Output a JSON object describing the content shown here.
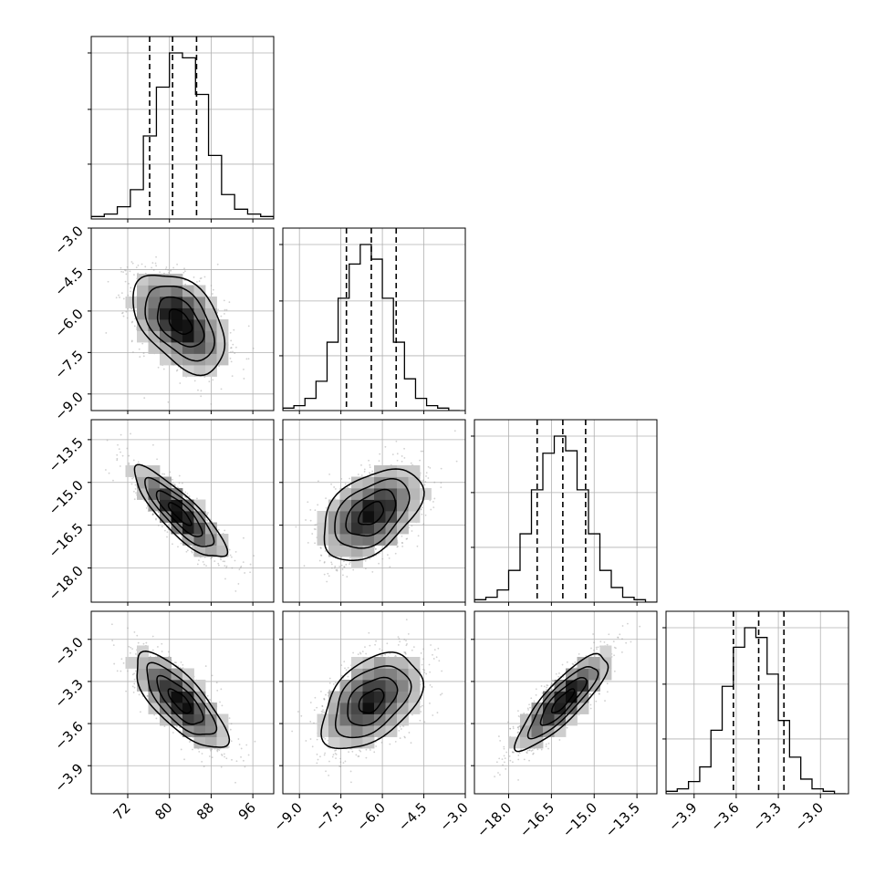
{
  "chart_data": {
    "type": "corner",
    "parameters": [
      {
        "range": [
          65,
          100
        ],
        "quantiles": [
          76.2,
          80.6,
          85.2
        ],
        "ticks": [
          {
            "v": 72,
            "label": "72"
          },
          {
            "v": 80,
            "label": "80"
          },
          {
            "v": 88,
            "label": "88"
          },
          {
            "v": 96,
            "label": "96"
          }
        ]
      },
      {
        "range": [
          -9.6,
          -3.0
        ],
        "quantiles": [
          -7.3,
          -6.4,
          -5.5
        ],
        "ticks": [
          {
            "v": -9.0,
            "label": "−9.0"
          },
          {
            "v": -7.5,
            "label": "−7.5"
          },
          {
            "v": -6.0,
            "label": "−6.0"
          },
          {
            "v": -4.5,
            "label": "−4.5"
          },
          {
            "v": -3.0,
            "label": "−3.0"
          }
        ]
      },
      {
        "range": [
          -19.2,
          -12.8
        ],
        "quantiles": [
          -17.0,
          -16.1,
          -15.3
        ],
        "ticks": [
          {
            "v": -18.0,
            "label": "−18.0"
          },
          {
            "v": -16.5,
            "label": "−16.5"
          },
          {
            "v": -15.0,
            "label": "−15.0"
          },
          {
            "v": -13.5,
            "label": "−13.5"
          }
        ]
      },
      {
        "range": [
          -4.1,
          -2.8
        ],
        "quantiles": [
          -3.62,
          -3.44,
          -3.26
        ],
        "ticks": [
          {
            "v": -3.9,
            "label": "−3.9"
          },
          {
            "v": -3.6,
            "label": "−3.6"
          },
          {
            "v": -3.3,
            "label": "−3.3"
          },
          {
            "v": -3.0,
            "label": "−3.0"
          }
        ]
      }
    ],
    "y_axis_parameters": [
      {
        "ticks": [
          {
            "v": -9.0,
            "label": "−9.0"
          },
          {
            "v": -7.5,
            "label": "−7.5"
          },
          {
            "v": -6.0,
            "label": "−6.0"
          },
          {
            "v": -4.5,
            "label": "−4.5"
          },
          {
            "v": -3.0,
            "label": "−3.0"
          }
        ]
      },
      {
        "ticks": [
          {
            "v": -18.0,
            "label": "−18.0"
          },
          {
            "v": -16.5,
            "label": "−16.5"
          },
          {
            "v": -15.0,
            "label": "−15.0"
          },
          {
            "v": -13.5,
            "label": "−13.5"
          }
        ]
      },
      {
        "ticks": [
          {
            "v": -3.9,
            "label": "−3.9"
          },
          {
            "v": -3.6,
            "label": "−3.6"
          },
          {
            "v": -3.3,
            "label": "−3.3"
          },
          {
            "v": -3.0,
            "label": "−3.0"
          }
        ]
      }
    ],
    "histograms": [
      {
        "bins": [
          65,
          67.5,
          70,
          72.5,
          75,
          77.5,
          80,
          82.5,
          85,
          87.5,
          90,
          92.5,
          95,
          97.5,
          100
        ],
        "counts": [
          1,
          2,
          5,
          12,
          34,
          54,
          68,
          66,
          51,
          26,
          10,
          4,
          2,
          1
        ]
      },
      {
        "bins": [
          -9.6,
          -9.2,
          -8.8,
          -8.4,
          -8.0,
          -7.6,
          -7.2,
          -6.8,
          -6.4,
          -6.0,
          -5.6,
          -5.2,
          -4.8,
          -4.4,
          -4.0,
          -3.6,
          -3.2
        ],
        "counts": [
          1,
          2,
          5,
          12,
          28,
          46,
          60,
          68,
          62,
          46,
          28,
          13,
          5,
          2,
          1,
          0
        ]
      },
      {
        "bins": [
          -19.2,
          -18.8,
          -18.4,
          -18.0,
          -17.6,
          -17.2,
          -16.8,
          -16.4,
          -16.0,
          -15.6,
          -15.2,
          -14.8,
          -14.4,
          -14.0,
          -13.6,
          -13.2,
          -12.8
        ],
        "counts": [
          1,
          2,
          5,
          13,
          28,
          46,
          61,
          68,
          62,
          46,
          28,
          13,
          6,
          2,
          1,
          0
        ]
      },
      {
        "bins": [
          -4.1,
          -4.02,
          -3.94,
          -3.86,
          -3.78,
          -3.7,
          -3.62,
          -3.54,
          -3.46,
          -3.38,
          -3.3,
          -3.22,
          -3.14,
          -3.06,
          -2.98,
          -2.9,
          -2.82
        ],
        "counts": [
          1,
          2,
          5,
          11,
          26,
          44,
          60,
          68,
          64,
          49,
          30,
          15,
          6,
          2,
          1,
          0
        ]
      }
    ],
    "gaussian_2d": {
      "means": [
        82,
        -6.4,
        -16.1,
        -3.44
      ],
      "sigmas": [
        4.4,
        0.9,
        0.8,
        0.17
      ],
      "correlations": {
        "1-0": -0.45,
        "2-0": -0.85,
        "2-1": 0.45,
        "3-0": -0.75,
        "3-1": 0.45,
        "3-2": 0.85
      }
    },
    "contour_levels_sigma": [
      0.5,
      1.0,
      1.5,
      2.0
    ],
    "grid": true,
    "colors": {
      "line": "#000000",
      "scatter": "#9a9a9a",
      "grid": "#b0b0b0",
      "frame": "#000000"
    }
  }
}
